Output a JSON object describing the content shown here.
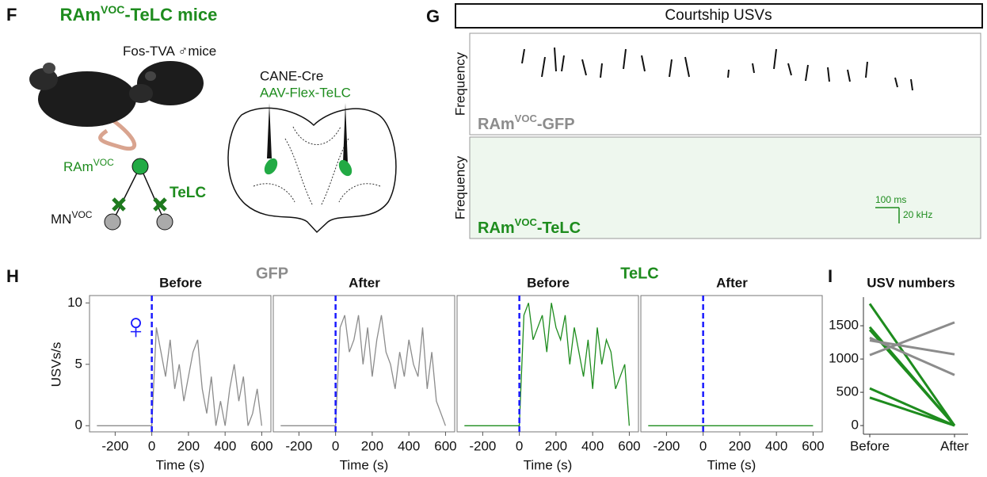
{
  "panel_f": {
    "letter": "F",
    "title": {
      "main": "RAm",
      "sup": "VOC",
      "rest": "-TeLC mice"
    },
    "mice_label": "Fos-TVA",
    "mice_sex": "♂mice",
    "cre": "CANE-Cre",
    "virus": "AAV-Flex-TeLC",
    "ram": {
      "main": "RAm",
      "sup": "VOC"
    },
    "telc": "TeLC",
    "mn": {
      "main": "MN",
      "sup": "VOC"
    }
  },
  "panel_g": {
    "letter": "G",
    "title": "Courtship USVs",
    "ylabel": "Frequency",
    "rows": [
      {
        "main": "RAm",
        "sup": "VOC",
        "rest": "-GFP",
        "color": "#8c8c8c"
      },
      {
        "main": "RAm",
        "sup": "VOC",
        "rest": "-TeLC",
        "color": "#1e8c1e"
      }
    ],
    "scale_time": "100 ms",
    "scale_freq": "20 kHz"
  },
  "chart_data": [
    {
      "type": "line",
      "letter": "H",
      "groups": [
        "GFP",
        "TeLC"
      ],
      "group_colors": [
        "#8c8c8c",
        "#1e8c1e"
      ],
      "ylabel": "USVs/s",
      "xlabel": "Time (s)",
      "symbol": "♀",
      "onset": 0,
      "onset_color": "#1a1aff",
      "x": [
        -300,
        -275,
        -250,
        -225,
        -200,
        -175,
        -150,
        -125,
        -100,
        -75,
        -50,
        -25,
        0,
        25,
        50,
        75,
        100,
        125,
        150,
        175,
        200,
        225,
        250,
        275,
        300,
        325,
        350,
        375,
        400,
        425,
        450,
        475,
        500,
        525,
        550,
        575,
        600
      ],
      "xlim": [
        -340,
        650
      ],
      "xticks": [
        -200,
        0,
        200,
        400,
        600
      ],
      "ylim": [
        -0.5,
        10.6
      ],
      "yticks": [
        0,
        5,
        10
      ],
      "series": [
        {
          "name": "Before",
          "color": "#8c8c8c",
          "values": [
            0,
            0,
            0,
            0,
            0,
            0,
            0,
            0,
            0,
            0,
            0,
            0,
            0,
            8,
            6,
            4,
            7,
            3,
            5,
            2,
            4,
            6,
            7,
            3,
            1,
            4,
            0,
            2,
            0,
            3,
            5,
            2,
            4,
            0,
            1,
            3,
            0
          ]
        },
        {
          "name": "After",
          "color": "#8c8c8c",
          "values": [
            0,
            0,
            0,
            0,
            0,
            0,
            0,
            0,
            0,
            0,
            0,
            0,
            0,
            8,
            9,
            6,
            7,
            9,
            5,
            8,
            4,
            7,
            9,
            6,
            5,
            3,
            6,
            4,
            7,
            5,
            4,
            8,
            3,
            6,
            2,
            1,
            0
          ]
        },
        {
          "name": "Before",
          "color": "#1e8c1e",
          "values": [
            0,
            0,
            0,
            0,
            0,
            0,
            0,
            0,
            0,
            0,
            0,
            0,
            0,
            9,
            10,
            7,
            8,
            9,
            6,
            10,
            8,
            7,
            9,
            5,
            8,
            6,
            4,
            7,
            3,
            8,
            5,
            7,
            6,
            3,
            4,
            5,
            0
          ]
        },
        {
          "name": "After",
          "color": "#1e8c1e",
          "values": [
            0,
            0,
            0,
            0,
            0,
            0,
            0,
            0,
            0,
            0,
            0,
            0,
            0,
            0,
            0,
            0,
            0,
            0,
            0,
            0,
            0,
            0,
            0,
            0,
            0,
            0,
            0,
            0,
            0,
            0,
            0,
            0,
            0,
            0,
            0,
            0,
            0
          ]
        }
      ]
    },
    {
      "type": "slope",
      "letter": "I",
      "title": "USV numbers",
      "categories": [
        "Before",
        "After"
      ],
      "ylim": [
        -130,
        1930
      ],
      "yticks": [
        0,
        500,
        1000,
        1500
      ],
      "series": [
        {
          "color": "#1e8c1e",
          "values": [
            1830,
            0
          ]
        },
        {
          "color": "#1e8c1e",
          "values": [
            1480,
            0
          ]
        },
        {
          "color": "#1e8c1e",
          "values": [
            1440,
            0
          ]
        },
        {
          "color": "#1e8c1e",
          "values": [
            560,
            0
          ]
        },
        {
          "color": "#1e8c1e",
          "values": [
            420,
            0
          ]
        },
        {
          "color": "#8c8c8c",
          "values": [
            1320,
            760
          ]
        },
        {
          "color": "#8c8c8c",
          "values": [
            1280,
            1070
          ]
        },
        {
          "color": "#8c8c8c",
          "values": [
            1060,
            1550
          ]
        }
      ]
    }
  ]
}
